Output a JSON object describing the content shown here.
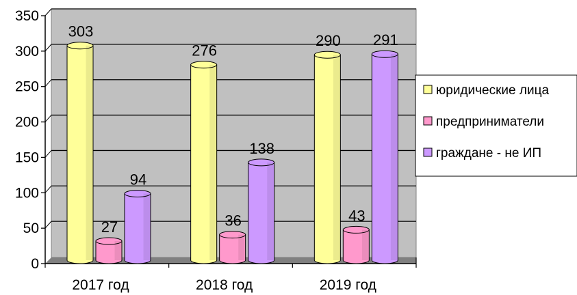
{
  "chart_data": {
    "type": "bar",
    "categories": [
      "2017 год",
      "2018 год",
      "2019 год"
    ],
    "series": [
      {
        "name": "юридические лица",
        "values": [
          303,
          276,
          290
        ],
        "color": "#ffff99"
      },
      {
        "name": "предприниматели",
        "values": [
          27,
          36,
          43
        ],
        "color": "#ff99cc"
      },
      {
        "name": "граждане - не ИП",
        "values": [
          94,
          138,
          291
        ],
        "color": "#cc99ff"
      }
    ],
    "ylim": [
      0,
      350
    ],
    "yticks": [
      0,
      50,
      100,
      150,
      200,
      250,
      300,
      350
    ],
    "grid": true,
    "legend_position": "right",
    "style": "3d-cylinder",
    "colors": {
      "wall": "#c0c0c0",
      "floor": "#808080",
      "grid": "#000000"
    }
  }
}
